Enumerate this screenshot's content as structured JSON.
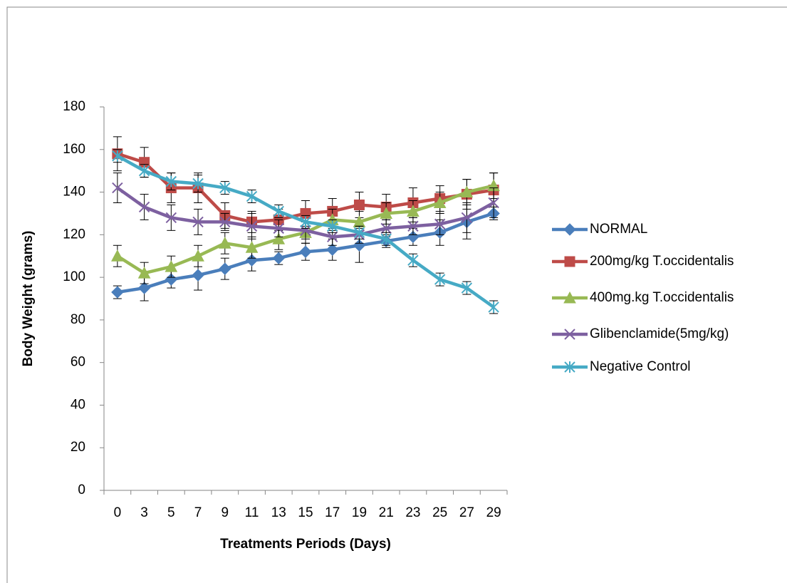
{
  "chart_data": {
    "type": "line",
    "x_label": "Treatments Periods (Days)",
    "y_label": "Body Weight (grams)",
    "categories": [
      "0",
      "3",
      "5",
      "7",
      "9",
      "11",
      "13",
      "15",
      "17",
      "19",
      "21",
      "23",
      "25",
      "27",
      "29"
    ],
    "ylim": [
      0,
      180
    ],
    "yticks": [
      0,
      20,
      40,
      60,
      80,
      100,
      120,
      140,
      160,
      180
    ],
    "grid": false,
    "legend": "right",
    "series": [
      {
        "name": "NORMAL",
        "color": "#4a7ebb",
        "marker": "diamond",
        "values": [
          93,
          95,
          99,
          101,
          104,
          108,
          109,
          112,
          113,
          115,
          117,
          119,
          121,
          126,
          130
        ],
        "errors": [
          3,
          6,
          4,
          7,
          5,
          5,
          3,
          4,
          5,
          8,
          3,
          4,
          6,
          8,
          3
        ]
      },
      {
        "name": "200mg/kg T.occidentalis",
        "color": "#be4b48",
        "marker": "square",
        "values": [
          158,
          154,
          142,
          142,
          129,
          126,
          127,
          130,
          131,
          134,
          133,
          135,
          137,
          139,
          141
        ],
        "errors": [
          8,
          7,
          7,
          7,
          6,
          5,
          5,
          6,
          6,
          6,
          6,
          7,
          6,
          7,
          8
        ]
      },
      {
        "name": "400mg.kg T.occidentalis",
        "color": "#98b954",
        "marker": "triangle",
        "values": [
          110,
          102,
          105,
          110,
          116,
          114,
          118,
          121,
          127,
          126,
          130,
          131,
          135,
          140,
          143
        ],
        "errors": [
          5,
          5,
          5,
          5,
          5,
          5,
          5,
          5,
          5,
          5,
          5,
          5,
          5,
          6,
          6
        ]
      },
      {
        "name": "Glibenclamide(5mg/kg)",
        "color": "#7d60a0",
        "marker": "x",
        "values": [
          142,
          133,
          128,
          126,
          126,
          124,
          123,
          122,
          119,
          120,
          123,
          124,
          125,
          128,
          135
        ],
        "errors": [
          7,
          6,
          6,
          6,
          4,
          6,
          4,
          4,
          4,
          4,
          4,
          4,
          5,
          7,
          7
        ]
      },
      {
        "name": "Negative Control",
        "color": "#46aac5",
        "marker": "star",
        "values": [
          157,
          150,
          145,
          144,
          142,
          138,
          131,
          126,
          124,
          121,
          118,
          108,
          99,
          95,
          86
        ],
        "errors": [
          3,
          3,
          4,
          4,
          3,
          3,
          3,
          3,
          3,
          3,
          3,
          3,
          3,
          3,
          3
        ]
      }
    ]
  }
}
